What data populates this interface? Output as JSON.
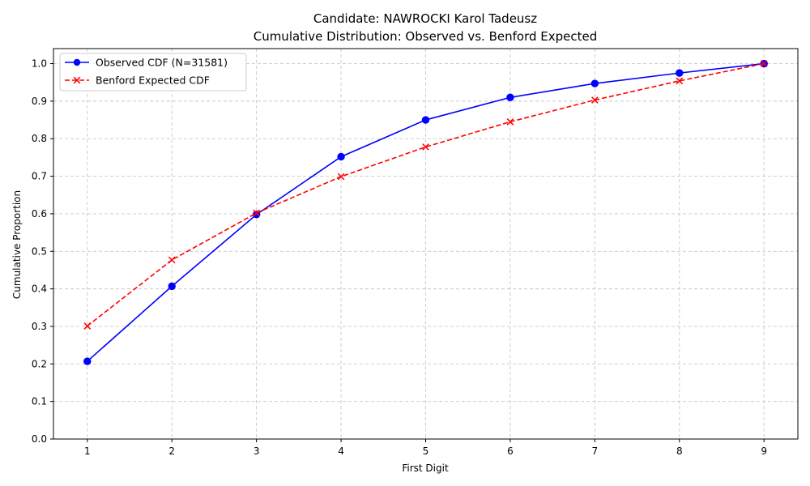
{
  "chart_data": {
    "type": "line",
    "title": "Candidate: NAWROCKI Karol Tadeusz",
    "subtitle": "Cumulative Distribution: Observed vs. Benford Expected",
    "xlabel": "First Digit",
    "ylabel": "Cumulative Proportion",
    "x": [
      1,
      2,
      3,
      4,
      5,
      6,
      7,
      8,
      9
    ],
    "xlim": [
      0.6,
      9.4
    ],
    "ylim": [
      0.0,
      1.04
    ],
    "yticks": [
      0.0,
      0.1,
      0.2,
      0.3,
      0.4,
      0.5,
      0.6,
      0.7,
      0.8,
      0.9,
      1.0
    ],
    "ytick_labels": [
      "0.0",
      "0.1",
      "0.2",
      "0.3",
      "0.4",
      "0.5",
      "0.6",
      "0.7",
      "0.8",
      "0.9",
      "1.0"
    ],
    "xtick_labels": [
      "1",
      "2",
      "3",
      "4",
      "5",
      "6",
      "7",
      "8",
      "9"
    ],
    "grid": true,
    "legend_position": "top-left",
    "series": [
      {
        "name": "Observed CDF (N=31581)",
        "values": [
          0.207,
          0.407,
          0.598,
          0.752,
          0.85,
          0.91,
          0.947,
          0.975,
          1.0
        ],
        "color": "#0000ff",
        "marker": "circle",
        "line_style": "solid"
      },
      {
        "name": "Benford Expected CDF",
        "values": [
          0.301,
          0.477,
          0.602,
          0.699,
          0.778,
          0.845,
          0.903,
          0.954,
          1.0
        ],
        "color": "#ff0000",
        "marker": "x",
        "line_style": "dashed"
      }
    ]
  }
}
